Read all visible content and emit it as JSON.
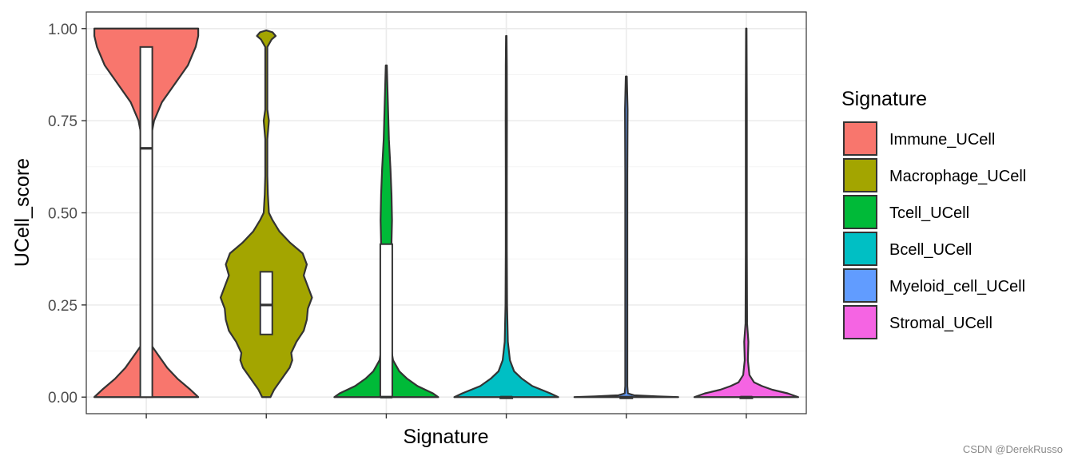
{
  "chart_data": {
    "type": "violin",
    "title": "",
    "xlabel": "Signature",
    "ylabel": "UCell_score",
    "ylim": [
      -0.045,
      1.045
    ],
    "yticks": [
      0,
      0.25,
      0.5,
      0.75,
      1
    ],
    "ytick_labels": [
      "0.00",
      "0.25",
      "0.50",
      "0.75",
      "1.00"
    ],
    "grid": true,
    "legend": {
      "title": "Signature",
      "position": "right"
    },
    "categories": [
      "Immune_UCell",
      "Macrophage_UCell",
      "Tcell_UCell",
      "Bcell_UCell",
      "Myeloid_cell_UCell",
      "Stromal_UCell"
    ],
    "series": [
      {
        "name": "Immune_UCell",
        "color": "#F8766D",
        "box": {
          "q1": 0.0,
          "median": 0.675,
          "q3": 0.95
        },
        "density_profile": [
          [
            0.0,
            1.0
          ],
          [
            0.02,
            0.85
          ],
          [
            0.05,
            0.6
          ],
          [
            0.08,
            0.4
          ],
          [
            0.12,
            0.2
          ],
          [
            0.15,
            0.05
          ],
          [
            0.2,
            0.02
          ],
          [
            0.35,
            0.02
          ],
          [
            0.5,
            0.02
          ],
          [
            0.6,
            0.03
          ],
          [
            0.65,
            0.05
          ],
          [
            0.7,
            0.08
          ],
          [
            0.75,
            0.15
          ],
          [
            0.8,
            0.3
          ],
          [
            0.85,
            0.55
          ],
          [
            0.9,
            0.8
          ],
          [
            0.95,
            0.95
          ],
          [
            0.98,
            1.0
          ],
          [
            1.0,
            1.0
          ]
        ]
      },
      {
        "name": "Macrophage_UCell",
        "color": "#A3A500",
        "box": {
          "q1": 0.17,
          "median": 0.25,
          "q3": 0.34
        },
        "density_profile": [
          [
            0.0,
            0.08
          ],
          [
            0.02,
            0.15
          ],
          [
            0.05,
            0.3
          ],
          [
            0.08,
            0.45
          ],
          [
            0.1,
            0.5
          ],
          [
            0.12,
            0.48
          ],
          [
            0.15,
            0.58
          ],
          [
            0.18,
            0.72
          ],
          [
            0.21,
            0.78
          ],
          [
            0.24,
            0.8
          ],
          [
            0.27,
            0.88
          ],
          [
            0.3,
            0.8
          ],
          [
            0.33,
            0.72
          ],
          [
            0.36,
            0.78
          ],
          [
            0.39,
            0.7
          ],
          [
            0.42,
            0.45
          ],
          [
            0.45,
            0.25
          ],
          [
            0.48,
            0.12
          ],
          [
            0.5,
            0.05
          ],
          [
            0.55,
            0.03
          ],
          [
            0.6,
            0.02
          ],
          [
            0.7,
            0.02
          ],
          [
            0.75,
            0.05
          ],
          [
            0.78,
            0.02
          ],
          [
            0.85,
            0.02
          ],
          [
            0.95,
            0.02
          ],
          [
            0.97,
            0.1
          ],
          [
            0.98,
            0.18
          ],
          [
            0.99,
            0.12
          ],
          [
            0.995,
            0.0
          ]
        ]
      },
      {
        "name": "Tcell_UCell",
        "color": "#00BA38",
        "box": {
          "q1": 0.0,
          "median": 0.0,
          "q3": 0.415
        },
        "density_profile": [
          [
            0.0,
            1.0
          ],
          [
            0.01,
            0.9
          ],
          [
            0.03,
            0.6
          ],
          [
            0.05,
            0.4
          ],
          [
            0.07,
            0.25
          ],
          [
            0.1,
            0.13
          ],
          [
            0.15,
            0.07
          ],
          [
            0.25,
            0.05
          ],
          [
            0.35,
            0.07
          ],
          [
            0.42,
            0.1
          ],
          [
            0.48,
            0.11
          ],
          [
            0.55,
            0.1
          ],
          [
            0.62,
            0.08
          ],
          [
            0.7,
            0.05
          ],
          [
            0.8,
            0.03
          ],
          [
            0.9,
            0.01
          ]
        ]
      },
      {
        "name": "Bcell_UCell",
        "color": "#00BFC4",
        "box": {
          "q1": 0.0,
          "median": 0.0,
          "q3": 0.0
        },
        "density_profile": [
          [
            0.0,
            1.0
          ],
          [
            0.01,
            0.85
          ],
          [
            0.03,
            0.5
          ],
          [
            0.05,
            0.3
          ],
          [
            0.07,
            0.15
          ],
          [
            0.1,
            0.07
          ],
          [
            0.15,
            0.03
          ],
          [
            0.25,
            0.015
          ],
          [
            0.4,
            0.01
          ],
          [
            0.6,
            0.01
          ],
          [
            0.75,
            0.012
          ],
          [
            0.9,
            0.01
          ],
          [
            0.98,
            0.005
          ]
        ]
      },
      {
        "name": "Myeloid_cell_UCell",
        "color": "#619CFF",
        "box": {
          "q1": 0.0,
          "median": 0.0,
          "q3": 0.0
        },
        "density_profile": [
          [
            0.0,
            1.0
          ],
          [
            0.002,
            0.6
          ],
          [
            0.005,
            0.15
          ],
          [
            0.01,
            0.03
          ],
          [
            0.03,
            0.02
          ],
          [
            0.3,
            0.02
          ],
          [
            0.6,
            0.02
          ],
          [
            0.78,
            0.025
          ],
          [
            0.87,
            0.01
          ]
        ]
      },
      {
        "name": "Stromal_UCell",
        "color": "#F564E3",
        "box": {
          "q1": 0.0,
          "median": 0.0,
          "q3": 0.0
        },
        "density_profile": [
          [
            0.0,
            1.0
          ],
          [
            0.01,
            0.8
          ],
          [
            0.02,
            0.5
          ],
          [
            0.03,
            0.3
          ],
          [
            0.04,
            0.15
          ],
          [
            0.06,
            0.06
          ],
          [
            0.1,
            0.03
          ],
          [
            0.15,
            0.04
          ],
          [
            0.2,
            0.015
          ],
          [
            0.4,
            0.01
          ],
          [
            0.6,
            0.01
          ],
          [
            0.8,
            0.01
          ],
          [
            1.0,
            0.005
          ]
        ]
      }
    ]
  },
  "watermark": "CSDN @DerekRusso"
}
